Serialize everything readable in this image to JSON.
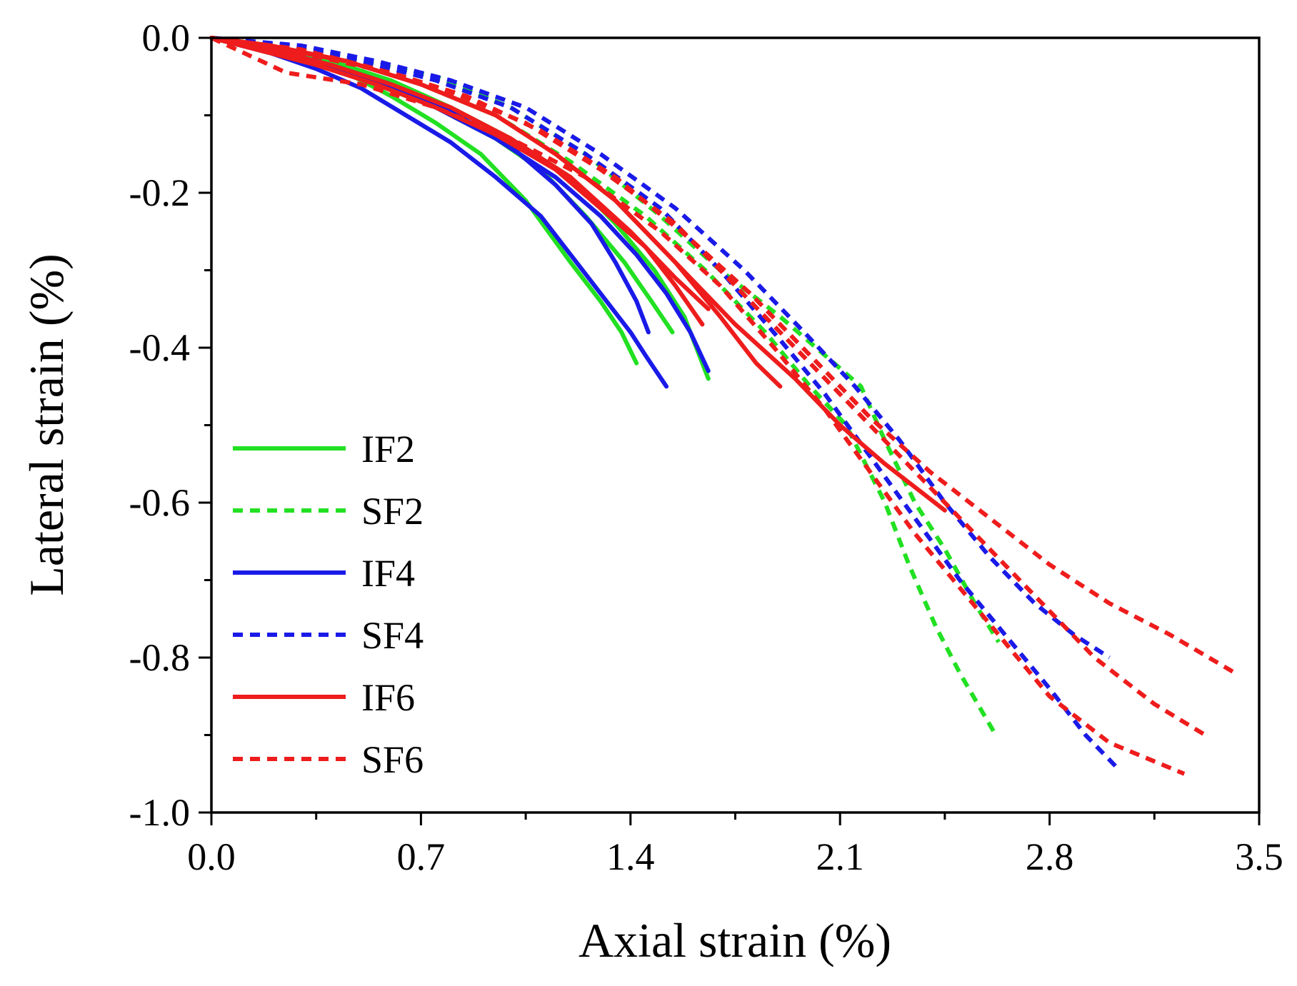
{
  "chart_data": {
    "type": "line",
    "title": "",
    "xlabel": "Axial strain (%)",
    "ylabel": "Lateral strain (%)",
    "xlim": [
      0.0,
      3.5
    ],
    "ylim": [
      -1.0,
      0.0
    ],
    "xticks": [
      "0.0",
      "0.7",
      "1.4",
      "2.1",
      "2.8",
      "3.5"
    ],
    "yticks": [
      "0.0",
      "-0.2",
      "-0.4",
      "-0.6",
      "-0.8",
      "-1.0"
    ],
    "grid": false,
    "legend_position": "left",
    "series": [
      {
        "name": "IF2",
        "color": "#22e022",
        "dash": "solid",
        "curves": [
          [
            [
              0,
              0
            ],
            [
              0.1,
              -0.01
            ],
            [
              0.25,
              -0.02
            ],
            [
              0.45,
              -0.045
            ],
            [
              0.6,
              -0.075
            ],
            [
              0.75,
              -0.11
            ],
            [
              0.9,
              -0.15
            ],
            [
              1.05,
              -0.21
            ],
            [
              1.2,
              -0.29
            ],
            [
              1.3,
              -0.34
            ],
            [
              1.37,
              -0.38
            ],
            [
              1.42,
              -0.42
            ]
          ],
          [
            [
              0,
              0
            ],
            [
              0.15,
              -0.012
            ],
            [
              0.35,
              -0.03
            ],
            [
              0.55,
              -0.06
            ],
            [
              0.75,
              -0.09
            ],
            [
              0.95,
              -0.13
            ],
            [
              1.1,
              -0.17
            ],
            [
              1.25,
              -0.23
            ],
            [
              1.38,
              -0.29
            ],
            [
              1.47,
              -0.34
            ],
            [
              1.54,
              -0.38
            ]
          ],
          [
            [
              0,
              0
            ],
            [
              0.2,
              -0.01
            ],
            [
              0.4,
              -0.03
            ],
            [
              0.6,
              -0.055
            ],
            [
              0.8,
              -0.09
            ],
            [
              1.0,
              -0.13
            ],
            [
              1.2,
              -0.18
            ],
            [
              1.35,
              -0.24
            ],
            [
              1.48,
              -0.3
            ],
            [
              1.58,
              -0.36
            ],
            [
              1.66,
              -0.44
            ]
          ]
        ]
      },
      {
        "name": "SF2",
        "color": "#22e022",
        "dash": "dashed",
        "curves": [
          [
            [
              0,
              0
            ],
            [
              0.2,
              -0.01
            ],
            [
              0.45,
              -0.03
            ],
            [
              0.7,
              -0.06
            ],
            [
              0.95,
              -0.1
            ],
            [
              1.2,
              -0.16
            ],
            [
              1.45,
              -0.23
            ],
            [
              1.65,
              -0.3
            ],
            [
              1.85,
              -0.38
            ],
            [
              2.0,
              -0.45
            ],
            [
              2.12,
              -0.5
            ],
            [
              2.25,
              -0.6
            ],
            [
              2.33,
              -0.68
            ],
            [
              2.42,
              -0.76
            ],
            [
              2.5,
              -0.82
            ],
            [
              2.56,
              -0.86
            ],
            [
              2.62,
              -0.9
            ]
          ],
          [
            [
              0,
              0
            ],
            [
              0.25,
              -0.012
            ],
            [
              0.5,
              -0.03
            ],
            [
              0.75,
              -0.05
            ],
            [
              1.0,
              -0.09
            ],
            [
              1.25,
              -0.15
            ],
            [
              1.5,
              -0.23
            ],
            [
              1.7,
              -0.3
            ],
            [
              1.9,
              -0.36
            ],
            [
              2.05,
              -0.41
            ],
            [
              2.17,
              -0.45
            ],
            [
              2.25,
              -0.52
            ],
            [
              2.35,
              -0.6
            ],
            [
              2.45,
              -0.66
            ],
            [
              2.55,
              -0.73
            ],
            [
              2.63,
              -0.78
            ]
          ]
        ]
      },
      {
        "name": "IF4",
        "color": "#1a1ae8",
        "dash": "solid",
        "curves": [
          [
            [
              0,
              0
            ],
            [
              0.2,
              -0.02
            ],
            [
              0.35,
              -0.04
            ],
            [
              0.5,
              -0.065
            ],
            [
              0.65,
              -0.1
            ],
            [
              0.8,
              -0.135
            ],
            [
              0.95,
              -0.18
            ],
            [
              1.1,
              -0.23
            ],
            [
              1.2,
              -0.28
            ],
            [
              1.3,
              -0.33
            ],
            [
              1.4,
              -0.38
            ],
            [
              1.45,
              -0.41
            ],
            [
              1.52,
              -0.45
            ]
          ],
          [
            [
              0,
              0
            ],
            [
              0.2,
              -0.015
            ],
            [
              0.4,
              -0.035
            ],
            [
              0.6,
              -0.06
            ],
            [
              0.8,
              -0.095
            ],
            [
              1.0,
              -0.14
            ],
            [
              1.15,
              -0.19
            ],
            [
              1.27,
              -0.24
            ],
            [
              1.35,
              -0.29
            ],
            [
              1.42,
              -0.34
            ],
            [
              1.46,
              -0.38
            ]
          ],
          [
            [
              0,
              0
            ],
            [
              0.15,
              -0.01
            ],
            [
              0.35,
              -0.03
            ],
            [
              0.55,
              -0.055
            ],
            [
              0.75,
              -0.09
            ],
            [
              0.95,
              -0.13
            ],
            [
              1.15,
              -0.18
            ],
            [
              1.3,
              -0.23
            ],
            [
              1.42,
              -0.28
            ],
            [
              1.52,
              -0.33
            ],
            [
              1.6,
              -0.38
            ],
            [
              1.66,
              -0.43
            ]
          ]
        ]
      },
      {
        "name": "SF4",
        "color": "#1a1ae8",
        "dash": "dashed",
        "curves": [
          [
            [
              0,
              0
            ],
            [
              0.25,
              -0.01
            ],
            [
              0.5,
              -0.03
            ],
            [
              0.75,
              -0.055
            ],
            [
              1.0,
              -0.09
            ],
            [
              1.25,
              -0.15
            ],
            [
              1.5,
              -0.22
            ],
            [
              1.7,
              -0.3
            ],
            [
              1.9,
              -0.39
            ],
            [
              2.05,
              -0.46
            ],
            [
              2.2,
              -0.54
            ],
            [
              2.35,
              -0.62
            ],
            [
              2.5,
              -0.7
            ],
            [
              2.65,
              -0.77
            ],
            [
              2.8,
              -0.84
            ],
            [
              2.92,
              -0.9
            ],
            [
              3.02,
              -0.94
            ]
          ],
          [
            [
              0,
              0
            ],
            [
              0.3,
              -0.01
            ],
            [
              0.55,
              -0.03
            ],
            [
              0.8,
              -0.055
            ],
            [
              1.05,
              -0.09
            ],
            [
              1.3,
              -0.15
            ],
            [
              1.55,
              -0.22
            ],
            [
              1.78,
              -0.3
            ],
            [
              1.98,
              -0.38
            ],
            [
              2.15,
              -0.45
            ],
            [
              2.3,
              -0.52
            ],
            [
              2.45,
              -0.6
            ],
            [
              2.6,
              -0.67
            ],
            [
              2.75,
              -0.73
            ],
            [
              2.88,
              -0.77
            ],
            [
              3.0,
              -0.8
            ]
          ]
        ]
      },
      {
        "name": "IF6",
        "color": "#ee1c1c",
        "dash": "solid",
        "curves": [
          [
            [
              0,
              0
            ],
            [
              0.15,
              -0.015
            ],
            [
              0.35,
              -0.035
            ],
            [
              0.55,
              -0.06
            ],
            [
              0.75,
              -0.09
            ],
            [
              0.95,
              -0.125
            ],
            [
              1.15,
              -0.17
            ],
            [
              1.3,
              -0.22
            ],
            [
              1.45,
              -0.27
            ],
            [
              1.55,
              -0.32
            ],
            [
              1.64,
              -0.37
            ]
          ],
          [
            [
              0,
              0
            ],
            [
              0.2,
              -0.015
            ],
            [
              0.4,
              -0.035
            ],
            [
              0.6,
              -0.06
            ],
            [
              0.8,
              -0.09
            ],
            [
              1.0,
              -0.13
            ],
            [
              1.2,
              -0.18
            ],
            [
              1.4,
              -0.25
            ],
            [
              1.55,
              -0.31
            ],
            [
              1.66,
              -0.35
            ]
          ],
          [
            [
              0,
              0
            ],
            [
              0.2,
              -0.01
            ],
            [
              0.45,
              -0.03
            ],
            [
              0.7,
              -0.06
            ],
            [
              0.95,
              -0.1
            ],
            [
              1.15,
              -0.15
            ],
            [
              1.35,
              -0.21
            ],
            [
              1.55,
              -0.29
            ],
            [
              1.7,
              -0.36
            ],
            [
              1.82,
              -0.42
            ],
            [
              1.9,
              -0.45
            ]
          ],
          [
            [
              0,
              0
            ],
            [
              0.2,
              -0.012
            ],
            [
              0.45,
              -0.03
            ],
            [
              0.7,
              -0.06
            ],
            [
              0.95,
              -0.1
            ],
            [
              1.15,
              -0.15
            ],
            [
              1.35,
              -0.21
            ],
            [
              1.55,
              -0.29
            ],
            [
              1.75,
              -0.37
            ],
            [
              1.95,
              -0.44
            ],
            [
              2.1,
              -0.5
            ],
            [
              2.25,
              -0.55
            ],
            [
              2.35,
              -0.58
            ],
            [
              2.45,
              -0.61
            ]
          ]
        ]
      },
      {
        "name": "SF6",
        "color": "#ee1c1c",
        "dash": "dashed",
        "curves": [
          [
            [
              0,
              0
            ],
            [
              0.25,
              -0.045
            ],
            [
              0.5,
              -0.06
            ],
            [
              0.75,
              -0.09
            ],
            [
              1.0,
              -0.13
            ],
            [
              1.25,
              -0.18
            ],
            [
              1.5,
              -0.25
            ],
            [
              1.7,
              -0.32
            ],
            [
              1.88,
              -0.4
            ],
            [
              2.05,
              -0.48
            ],
            [
              2.2,
              -0.56
            ],
            [
              2.35,
              -0.64
            ],
            [
              2.5,
              -0.71
            ],
            [
              2.65,
              -0.78
            ],
            [
              2.8,
              -0.85
            ],
            [
              3.0,
              -0.91
            ],
            [
              3.25,
              -0.95
            ]
          ],
          [
            [
              0,
              0
            ],
            [
              0.3,
              -0.015
            ],
            [
              0.55,
              -0.04
            ],
            [
              0.8,
              -0.07
            ],
            [
              1.05,
              -0.11
            ],
            [
              1.3,
              -0.17
            ],
            [
              1.55,
              -0.24
            ],
            [
              1.75,
              -0.32
            ],
            [
              1.95,
              -0.4
            ],
            [
              2.15,
              -0.48
            ],
            [
              2.35,
              -0.56
            ],
            [
              2.5,
              -0.62
            ],
            [
              2.65,
              -0.68
            ],
            [
              2.8,
              -0.74
            ],
            [
              2.95,
              -0.8
            ],
            [
              3.15,
              -0.86
            ],
            [
              3.32,
              -0.9
            ]
          ],
          [
            [
              0,
              0
            ],
            [
              0.3,
              -0.02
            ],
            [
              0.6,
              -0.045
            ],
            [
              0.85,
              -0.075
            ],
            [
              1.1,
              -0.12
            ],
            [
              1.35,
              -0.18
            ],
            [
              1.6,
              -0.26
            ],
            [
              1.8,
              -0.33
            ],
            [
              2.0,
              -0.41
            ],
            [
              2.2,
              -0.49
            ],
            [
              2.4,
              -0.56
            ],
            [
              2.6,
              -0.62
            ],
            [
              2.8,
              -0.68
            ],
            [
              3.0,
              -0.73
            ],
            [
              3.2,
              -0.77
            ],
            [
              3.42,
              -0.82
            ]
          ]
        ]
      }
    ]
  }
}
